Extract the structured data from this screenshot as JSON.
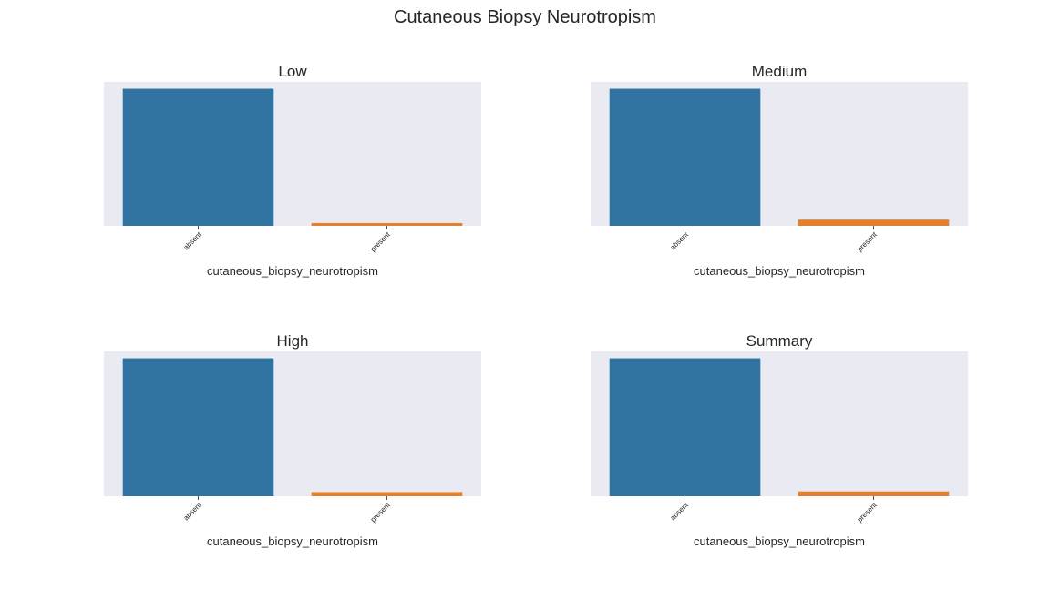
{
  "figure": {
    "title": "Cutaneous Biopsy Neurotropism"
  },
  "colors": {
    "panel_background": "#eaeaf2",
    "series": [
      "#3274a1",
      "#e1812c"
    ],
    "text": "#262626"
  },
  "chart_data": [
    {
      "type": "bar",
      "title": "Low",
      "xlabel": "cutaneous_biopsy_neurotropism",
      "ylabel": "",
      "categories": [
        "absent",
        "present"
      ],
      "values": [
        1.0,
        0.02
      ],
      "ylim": [
        0,
        1.05
      ],
      "grid": false,
      "yticks_visible": false
    },
    {
      "type": "bar",
      "title": "Medium",
      "xlabel": "cutaneous_biopsy_neurotropism",
      "ylabel": "",
      "categories": [
        "absent",
        "present"
      ],
      "values": [
        1.0,
        0.045
      ],
      "ylim": [
        0,
        1.05
      ],
      "grid": false,
      "yticks_visible": false
    },
    {
      "type": "bar",
      "title": "High",
      "xlabel": "cutaneous_biopsy_neurotropism",
      "ylabel": "",
      "categories": [
        "absent",
        "present"
      ],
      "values": [
        1.0,
        0.03
      ],
      "ylim": [
        0,
        1.05
      ],
      "grid": false,
      "yticks_visible": false
    },
    {
      "type": "bar",
      "title": "Summary",
      "xlabel": "cutaneous_biopsy_neurotropism",
      "ylabel": "",
      "categories": [
        "absent",
        "present"
      ],
      "values": [
        1.0,
        0.035
      ],
      "ylim": [
        0,
        1.05
      ],
      "grid": false,
      "yticks_visible": false
    }
  ]
}
